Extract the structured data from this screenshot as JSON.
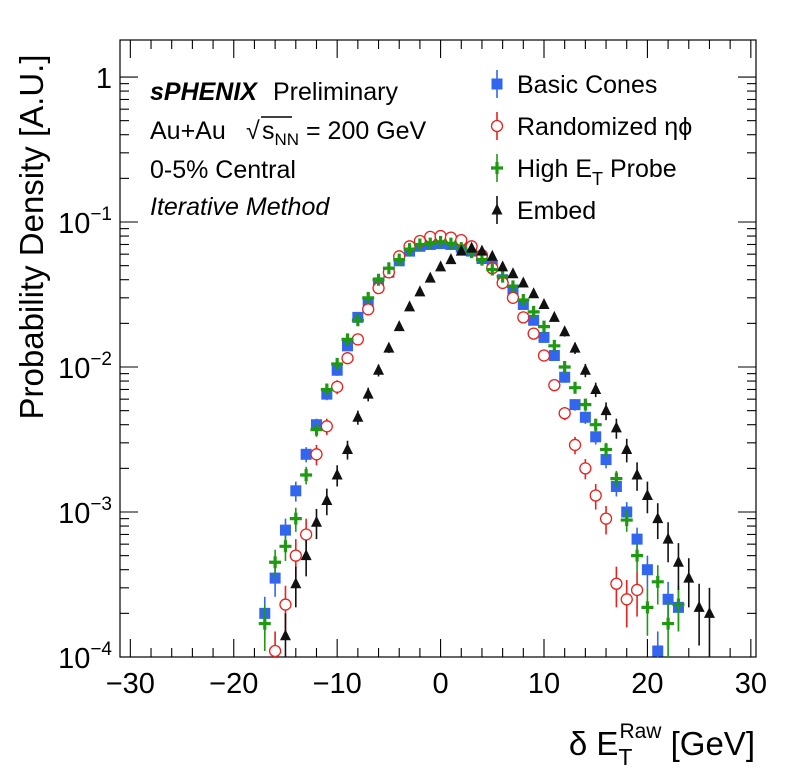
{
  "chart_data": {
    "type": "scatter",
    "xlabel": {
      "prefix": "δ E",
      "sub": "T",
      "sup": "Raw",
      "suffix": " [GeV]"
    },
    "ylabel": "Probability Density [A.U.]",
    "xlim": [
      -31,
      30.5
    ],
    "ylim": [
      0.0001,
      1.8
    ],
    "yscale": "log",
    "xticks": [
      -30,
      -20,
      -10,
      0,
      10,
      20,
      30
    ],
    "xtick_labels": [
      "−30",
      "−20",
      "−10",
      "0",
      "10",
      "20",
      "30"
    ],
    "yticks": [
      {
        "value": 1,
        "label": "1"
      },
      {
        "value": 0.1,
        "base": "10",
        "exp": "−1"
      },
      {
        "value": 0.01,
        "base": "10",
        "exp": "−2"
      },
      {
        "value": 0.001,
        "base": "10",
        "exp": "−3"
      },
      {
        "value": 0.0001,
        "base": "10",
        "exp": "−4"
      }
    ],
    "annotations": {
      "experiment": "sPHENIX",
      "status": "Preliminary",
      "system": "Au+Au",
      "energy_sqrt": "s",
      "energy_sub": "NN",
      "energy_value": " = 200 GeV",
      "centrality": "0-5% Central",
      "method": "Iterative Method"
    },
    "legend_position": "top-right",
    "series": [
      {
        "name": "Basic Cones",
        "marker": "square",
        "color": "#3366ee",
        "points": [
          [
            -17,
            0.0002
          ],
          [
            -16,
            0.00035
          ],
          [
            -15,
            0.00075
          ],
          [
            -14,
            0.0014
          ],
          [
            -13,
            0.0025
          ],
          [
            -12,
            0.004
          ],
          [
            -11,
            0.0065
          ],
          [
            -10,
            0.0095
          ],
          [
            -9,
            0.014
          ],
          [
            -8,
            0.022
          ],
          [
            -7,
            0.028
          ],
          [
            -6,
            0.038
          ],
          [
            -5,
            0.045
          ],
          [
            -4,
            0.054
          ],
          [
            -3,
            0.063
          ],
          [
            -2,
            0.068
          ],
          [
            -1,
            0.07
          ],
          [
            0,
            0.071
          ],
          [
            1,
            0.07
          ],
          [
            2,
            0.067
          ],
          [
            3,
            0.063
          ],
          [
            4,
            0.056
          ],
          [
            5,
            0.05
          ],
          [
            6,
            0.04
          ],
          [
            7,
            0.034
          ],
          [
            8,
            0.027
          ],
          [
            9,
            0.021
          ],
          [
            10,
            0.016
          ],
          [
            11,
            0.012
          ],
          [
            12,
            0.0085
          ],
          [
            13,
            0.0055
          ],
          [
            14,
            0.0045
          ],
          [
            15,
            0.0033
          ],
          [
            16,
            0.0023
          ],
          [
            17,
            0.0015
          ],
          [
            18,
            0.001
          ],
          [
            19,
            0.00065
          ],
          [
            20,
            0.0004
          ],
          [
            21,
            0.00011
          ],
          [
            22,
            0.00025
          ],
          [
            23,
            0.00022
          ]
        ],
        "errors": [
          6e-05,
          9e-05,
          0.00015,
          0.00022,
          0.0003,
          0.0004,
          0.0006,
          0.0008,
          0.001,
          0.0014,
          0.0016,
          0.002,
          0.0022,
          0.0025,
          0.0028,
          0.003,
          0.003,
          0.003,
          0.003,
          0.003,
          0.0028,
          0.0026,
          0.0024,
          0.002,
          0.0018,
          0.0016,
          0.0013,
          0.0011,
          0.0009,
          0.0007,
          0.0005,
          0.00045,
          0.00038,
          0.0003,
          0.00022,
          0.00017,
          0.00013,
          0.0001,
          4e-05,
          8e-05,
          7e-05
        ]
      },
      {
        "name": "Randomized ηϕ",
        "marker": "open-circle",
        "color": "#e8211c",
        "points": [
          [
            -16,
            0.00011
          ],
          [
            -15,
            0.00023
          ],
          [
            -14,
            0.0005
          ],
          [
            -13,
            0.0007
          ],
          [
            -12,
            0.0025
          ],
          [
            -11,
            0.0039
          ],
          [
            -10,
            0.0073
          ],
          [
            -9,
            0.0115
          ],
          [
            -8,
            0.0155
          ],
          [
            -7,
            0.025
          ],
          [
            -6,
            0.035
          ],
          [
            -5,
            0.045
          ],
          [
            -4,
            0.058
          ],
          [
            -3,
            0.068
          ],
          [
            -2,
            0.074
          ],
          [
            -1,
            0.079
          ],
          [
            0,
            0.08
          ],
          [
            1,
            0.078
          ],
          [
            2,
            0.075
          ],
          [
            3,
            0.068
          ],
          [
            4,
            0.059
          ],
          [
            5,
            0.048
          ],
          [
            6,
            0.038
          ],
          [
            7,
            0.03
          ],
          [
            8,
            0.022
          ],
          [
            9,
            0.017
          ],
          [
            10,
            0.012
          ],
          [
            11,
            0.0075
          ],
          [
            12,
            0.0048
          ],
          [
            13,
            0.0029
          ],
          [
            14,
            0.002
          ],
          [
            15,
            0.0013
          ],
          [
            16,
            0.0009
          ],
          [
            17,
            0.00032
          ],
          [
            18,
            0.00025
          ],
          [
            19,
            0.00029
          ]
        ],
        "errors": [
          4e-05,
          8e-05,
          0.00015,
          0.0002,
          0.0004,
          0.0005,
          0.0008,
          0.001,
          0.0012,
          0.0015,
          0.002,
          0.0022,
          0.0026,
          0.003,
          0.003,
          0.003,
          0.003,
          0.003,
          0.003,
          0.0029,
          0.0026,
          0.0023,
          0.002,
          0.0017,
          0.0014,
          0.0012,
          0.001,
          0.0007,
          0.0005,
          0.0004,
          0.00032,
          0.00026,
          0.0002,
          0.0001,
          9e-05,
          0.0001
        ]
      },
      {
        "name": "High E_T Probe",
        "marker": "cross",
        "color": "#1f9911",
        "points": [
          [
            -17,
            0.00017
          ],
          [
            -16,
            0.00045
          ],
          [
            -15,
            0.00058
          ],
          [
            -14,
            0.0009
          ],
          [
            -13,
            0.0018
          ],
          [
            -12,
            0.0037
          ],
          [
            -11,
            0.007
          ],
          [
            -10,
            0.0105
          ],
          [
            -9,
            0.0155
          ],
          [
            -8,
            0.021
          ],
          [
            -7,
            0.03
          ],
          [
            -6,
            0.04
          ],
          [
            -5,
            0.048
          ],
          [
            -4,
            0.055
          ],
          [
            -3,
            0.065
          ],
          [
            -2,
            0.07
          ],
          [
            -1,
            0.071
          ],
          [
            0,
            0.073
          ],
          [
            1,
            0.071
          ],
          [
            2,
            0.066
          ],
          [
            3,
            0.062
          ],
          [
            4,
            0.055
          ],
          [
            5,
            0.047
          ],
          [
            6,
            0.042
          ],
          [
            7,
            0.036
          ],
          [
            8,
            0.029
          ],
          [
            9,
            0.024
          ],
          [
            10,
            0.019
          ],
          [
            11,
            0.014
          ],
          [
            12,
            0.01
          ],
          [
            13,
            0.0072
          ],
          [
            14,
            0.0055
          ],
          [
            15,
            0.004
          ],
          [
            16,
            0.0027
          ],
          [
            17,
            0.0017
          ],
          [
            18,
            0.00088
          ],
          [
            19,
            0.0005
          ],
          [
            20,
            0.00022
          ],
          [
            21,
            0.00033
          ],
          [
            22,
            0.00017
          ],
          [
            23,
            0.00023
          ]
        ],
        "errors": [
          6e-05,
          0.0001,
          0.00012,
          0.00017,
          0.00025,
          0.0004,
          0.0006,
          0.0008,
          0.001,
          0.0013,
          0.0016,
          0.002,
          0.0022,
          0.0024,
          0.0028,
          0.003,
          0.003,
          0.003,
          0.003,
          0.003,
          0.0028,
          0.0026,
          0.0022,
          0.002,
          0.0018,
          0.0016,
          0.0014,
          0.0012,
          0.001,
          0.0008,
          0.0006,
          0.0005,
          0.0004,
          0.0003,
          0.00022,
          0.00015,
          0.00011,
          8e-05,
          0.0001,
          7e-05,
          8e-05
        ]
      },
      {
        "name": "Embed",
        "marker": "triangle",
        "color": "#111111",
        "points": [
          [
            -15,
            0.00014
          ],
          [
            -14,
            0.00032
          ],
          [
            -13,
            0.0005
          ],
          [
            -12,
            0.00085
          ],
          [
            -11,
            0.0012
          ],
          [
            -10,
            0.0018
          ],
          [
            -9,
            0.0027
          ],
          [
            -8,
            0.0045
          ],
          [
            -7,
            0.0065
          ],
          [
            -6,
            0.0095
          ],
          [
            -5,
            0.0135
          ],
          [
            -4,
            0.019
          ],
          [
            -3,
            0.026
          ],
          [
            -2,
            0.033
          ],
          [
            -1,
            0.041
          ],
          [
            0,
            0.049
          ],
          [
            1,
            0.055
          ],
          [
            2,
            0.063
          ],
          [
            3,
            0.066
          ],
          [
            4,
            0.063
          ],
          [
            5,
            0.058
          ],
          [
            6,
            0.049
          ],
          [
            7,
            0.044
          ],
          [
            8,
            0.038
          ],
          [
            9,
            0.032
          ],
          [
            10,
            0.027
          ],
          [
            11,
            0.022
          ],
          [
            12,
            0.0175
          ],
          [
            13,
            0.0135
          ],
          [
            14,
            0.0095
          ],
          [
            15,
            0.007
          ],
          [
            16,
            0.005
          ],
          [
            17,
            0.0038
          ],
          [
            18,
            0.0027
          ],
          [
            19,
            0.0018
          ],
          [
            20,
            0.0013
          ],
          [
            21,
            0.0009
          ],
          [
            22,
            0.00065
          ],
          [
            23,
            0.00045
          ],
          [
            24,
            0.00035
          ],
          [
            25,
            0.00022
          ],
          [
            26,
            0.0002
          ]
        ],
        "errors": [
          6e-05,
          0.0001,
          0.00014,
          0.0002,
          0.00025,
          0.0003,
          0.0004,
          0.0005,
          0.0007,
          0.0009,
          0.001,
          0.0013,
          0.0016,
          0.0018,
          0.002,
          0.0022,
          0.0024,
          0.0026,
          0.0027,
          0.0026,
          0.0025,
          0.0023,
          0.0021,
          0.002,
          0.0018,
          0.0016,
          0.0015,
          0.0013,
          0.0012,
          0.001,
          0.0008,
          0.0007,
          0.0006,
          0.0005,
          0.0004,
          0.00032,
          0.00025,
          0.0002,
          0.00016,
          0.00013,
          0.0001,
          0.0001
        ]
      }
    ]
  }
}
